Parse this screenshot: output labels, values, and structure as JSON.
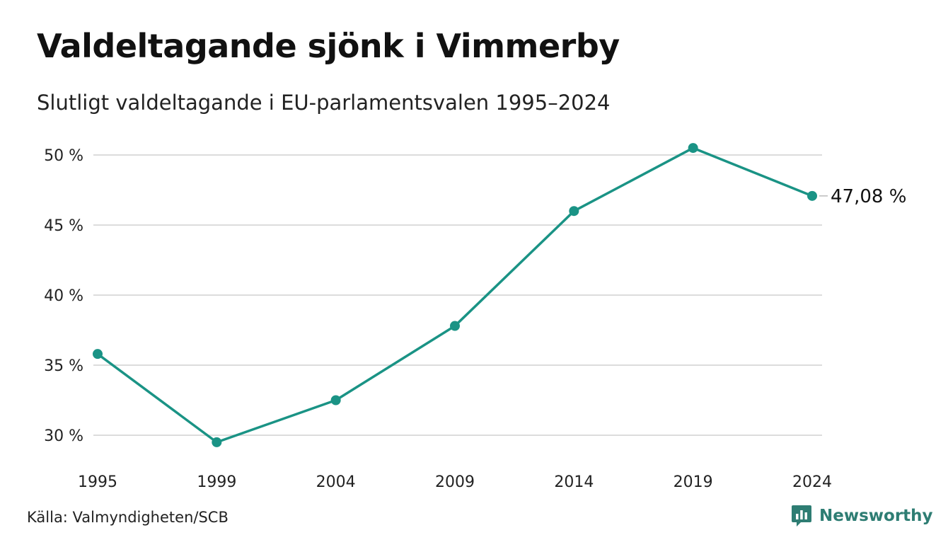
{
  "header": {
    "title": "Valdeltagande sjönk i Vimmerby",
    "subtitle": "Slutligt valdeltagande i EU-parlamentsvalen 1995–2024"
  },
  "footer": {
    "source": "Källa: Valmyndigheten/SCB",
    "brand": "Newsworthy",
    "brand_icon": "bar-chart-speech-bubble-icon"
  },
  "colors": {
    "line": "#1a9385",
    "grid": "#dcdcdc",
    "brand": "#2e7d73"
  },
  "chart_data": {
    "type": "line",
    "title": "Valdeltagande sjönk i Vimmerby",
    "subtitle": "Slutligt valdeltagande i EU-parlamentsvalen 1995–2024",
    "xlabel": "",
    "ylabel": "",
    "x": [
      "1995",
      "1999",
      "2004",
      "2009",
      "2014",
      "2019",
      "2024"
    ],
    "series": [
      {
        "values": [
          35.8,
          29.5,
          32.5,
          37.8,
          46.0,
          50.5,
          47.08
        ]
      }
    ],
    "y_ticks": [
      30,
      35,
      40,
      45,
      50
    ],
    "y_tick_labels": [
      "30 %",
      "35 %",
      "40 %",
      "45 %",
      "50 %"
    ],
    "ylim": [
      30,
      50
    ],
    "grid": true,
    "legend": "none",
    "end_label": "47,08 %"
  }
}
